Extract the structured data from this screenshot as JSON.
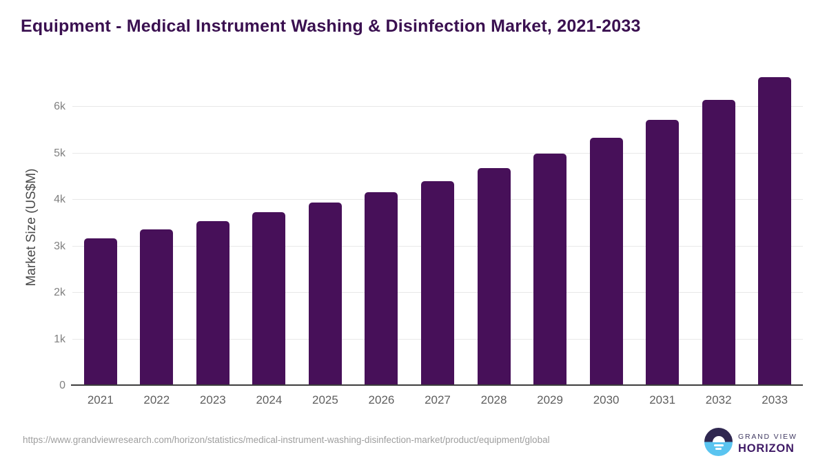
{
  "title": "Equipment - Medical Instrument Washing & Disinfection Market, 2021-2033",
  "chart_data": {
    "type": "bar",
    "title": "Equipment - Medical Instrument Washing & Disinfection Market, 2021-2033",
    "categories": [
      "2021",
      "2022",
      "2023",
      "2024",
      "2025",
      "2026",
      "2027",
      "2028",
      "2029",
      "2030",
      "2031",
      "2032",
      "2033"
    ],
    "values": [
      3170,
      3370,
      3550,
      3740,
      3950,
      4160,
      4410,
      4680,
      5000,
      5340,
      5730,
      6160,
      6640
    ],
    "xlabel": "",
    "ylabel": "Market Size (US$M)",
    "ylim": [
      0,
      6820
    ],
    "yticks": [
      0,
      1000,
      2000,
      3000,
      4000,
      5000,
      6000
    ],
    "ytick_labels": [
      "0",
      "1k",
      "2k",
      "3k",
      "4k",
      "5k",
      "6k"
    ],
    "grid": true,
    "legend": "none",
    "bar_color": "#471059",
    "gridline_color": "#e8e8e8",
    "axis_line_color": "#3c3c3c"
  },
  "colors": {
    "title": "#3a1050",
    "bar": "#471059",
    "url_text": "#9e9e9e",
    "logo_dark": "#2f2750",
    "logo_blue": "#5ac4f0"
  },
  "footer": {
    "source_url": "https://www.grandviewresearch.com/horizon/statistics/medical-instrument-washing-disinfection-market/product/equipment/global",
    "logo": {
      "line1": "GRAND VIEW",
      "line2": "HORIZON"
    }
  }
}
